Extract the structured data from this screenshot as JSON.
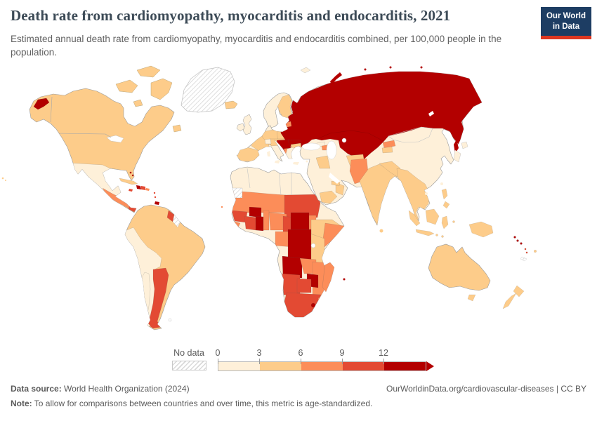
{
  "header": {
    "title": "Death rate from cardiomyopathy, myocarditis and endocarditis, 2021",
    "subtitle": "Estimated annual death rate from cardiomyopathy, myocarditis and endocarditis combined, per 100,000 people in the population.",
    "logo_line1": "Our World",
    "logo_line2": "in Data"
  },
  "colors": {
    "navy": "#1d3d63",
    "logo_red": "#dd3721",
    "title": "#3d4b57",
    "subtitle": "#616161",
    "footer": "#5a5a5a",
    "legend_text": "#5b5b5b",
    "border_gray": "#b9b9b9"
  },
  "legend": {
    "no_data_label": "No data",
    "ticks": [
      "0",
      "3",
      "6",
      "9",
      "12"
    ]
  },
  "footer": {
    "source_label": "Data source:",
    "source_text": " World Health Organization (2024)",
    "credit": "OurWorldinData.org/cardiovascular-diseases | CC BY",
    "note_label": "Note:",
    "note_text": " To allow for comparisons between countries and over time, this metric is age-standardized."
  },
  "chart_data": {
    "type": "choropleth",
    "title": "Death rate from cardiomyopathy, myocarditis and endocarditis, 2021",
    "year": 2021,
    "unit": "deaths per 100,000 people (age-standardized)",
    "projection": "world",
    "legend_bins": [
      {
        "label": "0-3",
        "min": 0,
        "max": 3,
        "color": "#fef0d9"
      },
      {
        "label": "3-6",
        "min": 3,
        "max": 6,
        "color": "#fdcc8a"
      },
      {
        "label": "6-9",
        "min": 6,
        "max": 9,
        "color": "#fc8d59"
      },
      {
        "label": "9-12",
        "min": 9,
        "max": 12,
        "color": "#e34a33"
      },
      {
        "label": "12+",
        "min": 12,
        "max": null,
        "color": "#b30000"
      }
    ],
    "no_data": {
      "label": "No data",
      "style": "hatched"
    },
    "regions": {
      "greenland": "no-data",
      "canada": "3-6",
      "usa": "3-6",
      "mexico": "0-3",
      "guatemala": "6-9",
      "honduras": "6-9",
      "nicaragua": "6-9",
      "panama": "9-12",
      "cuba": "3-6",
      "haiti": "12+",
      "dominican-republic": "9-12",
      "jamaica": "9-12",
      "bahamas": "12+",
      "puerto-rico": "6-9",
      "lesser-antilles": "9-12",
      "trinidad-and-tobago": "12+",
      "colombia": "3-6",
      "venezuela": "3-6",
      "brazil": "3-6",
      "guyana": "9-12",
      "suriname": "no-data",
      "ecuador": "0-3",
      "peru": "0-3",
      "bolivia": "0-3",
      "chile": "0-3",
      "argentina": "9-12",
      "paraguay": "3-6",
      "uruguay": "3-6",
      "falkland-islands": "no-data",
      "iceland": "3-6",
      "united-kingdom": "0-3",
      "ireland": "0-3",
      "norway": "0-3",
      "sweden": "0-3",
      "finland": "3-6",
      "denmark": "0-3",
      "germany": "3-6",
      "netherlands": "3-6",
      "belgium": "3-6",
      "france": "3-6",
      "spain": "3-6",
      "portugal": "3-6",
      "italy": "0-3",
      "switzerland": "0-3",
      "austria": "3-6",
      "czechia": "3-6",
      "poland": "3-6",
      "slovakia": "3-6",
      "hungary": "12+",
      "croatia": "12+",
      "serbia": "12+",
      "bosnia-and-herzegovina": "12+",
      "romania": "12+",
      "bulgaria": "3-6",
      "albania": "6-9",
      "north-macedonia": "6-9",
      "greece": "0-3",
      "estonia": "6-9",
      "latvia": "12+",
      "lithuania": "12+",
      "belarus": "12+",
      "ukraine": "12+",
      "moldova": "12+",
      "russia": "12+",
      "kazakhstan": "12+",
      "uzbekistan": "12+",
      "turkmenistan": "12+",
      "kyrgyzstan": "6-9",
      "tajikistan": "3-6",
      "georgia": "0-3",
      "azerbaijan": "6-9",
      "armenia": "3-6",
      "turkey": "0-3",
      "cyprus": "0-3",
      "syria": "0-3",
      "iraq": "3-6",
      "iran": "0-3",
      "saudi-arabia": "0-3",
      "yemen": "3-6",
      "oman": "3-6",
      "united-arab-emirates": "3-6",
      "jordan": "0-3",
      "israel": "0-3",
      "afghanistan": "3-6",
      "pakistan": "6-9",
      "india": "3-6",
      "nepal": "3-6",
      "bangladesh": "3-6",
      "sri-lanka": "3-6",
      "myanmar": "3-6",
      "thailand": "3-6",
      "laos": "3-6",
      "cambodia": "3-6",
      "vietnam": "3-6",
      "malaysia": "3-6",
      "indonesia": "3-6",
      "philippines": "3-6",
      "papua-new-guinea": "3-6",
      "china": "0-3",
      "mongolia": "0-3",
      "japan": "0-3",
      "south-korea": "0-3",
      "north-korea": "0-3",
      "taiwan": "0-3",
      "morocco": "0-3",
      "algeria": "0-3",
      "tunisia": "0-3",
      "libya": "0-3",
      "egypt": "0-3",
      "western-sahara": "no-data",
      "mauritania": "6-9",
      "mali": "6-9",
      "niger": "6-9",
      "senegal": "6-9",
      "guinea": "9-12",
      "sierra-leone": "6-9",
      "liberia": "6-9",
      "cote-divoire": "9-12",
      "burkina-faso": "12+",
      "ghana": "12+",
      "togo": "6-9",
      "benin": "6-9",
      "nigeria": "6-9",
      "chad": "9-12",
      "sudan": "9-12",
      "south-sudan": "6-9",
      "cameroon": "9-12",
      "central-african-republic": "12+",
      "ethiopia": "3-6",
      "eritrea": "6-9",
      "somalia": "6-9",
      "kenya": "3-6",
      "uganda": "3-6",
      "tanzania": "3-6",
      "democratic-republic-of-congo": "12+",
      "congo": "6-9",
      "gabon": "6-9",
      "angola": "12+",
      "zambia": "6-9",
      "malawi": "6-9",
      "mozambique": "6-9",
      "zimbabwe": "12+",
      "namibia": "9-12",
      "botswana": "9-12",
      "south-africa": "9-12",
      "lesotho": "12+",
      "eswatini": "6-9",
      "madagascar": "6-9",
      "mauritius": "12+",
      "cape-verde": "6-9",
      "australia": "3-6",
      "new-zealand": "3-6",
      "fiji": "3-6",
      "solomon-islands": "12+",
      "vanuatu": "9-12",
      "new-caledonia": "no-data"
    }
  }
}
